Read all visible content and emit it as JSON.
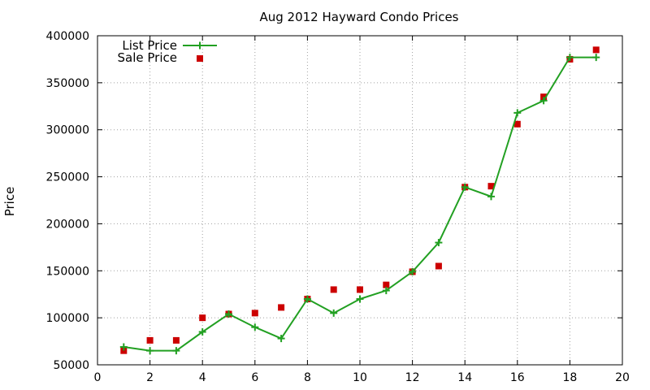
{
  "chart_data": {
    "type": "line",
    "title": "Aug 2012 Hayward Condo Prices",
    "xlabel": "",
    "ylabel": "Price",
    "xlim": [
      0,
      20
    ],
    "ylim": [
      50000,
      400000
    ],
    "x_ticks": [
      0,
      2,
      4,
      6,
      8,
      10,
      12,
      14,
      16,
      18,
      20
    ],
    "y_ticks": [
      50000,
      100000,
      150000,
      200000,
      250000,
      300000,
      350000,
      400000
    ],
    "grid": true,
    "legend_position": "top-left",
    "series": [
      {
        "name": "List Price",
        "style": "lines+points",
        "marker": "plus",
        "color": "#22a022",
        "x": [
          1,
          2,
          3,
          4,
          5,
          6,
          7,
          8,
          9,
          10,
          11,
          12,
          13,
          14,
          15,
          16,
          17,
          18,
          19
        ],
        "values": [
          69000,
          65000,
          65000,
          85000,
          104000,
          90000,
          78000,
          120000,
          105000,
          120000,
          129000,
          149000,
          180000,
          239000,
          229000,
          318000,
          331000,
          377000,
          377000
        ]
      },
      {
        "name": "Sale Price",
        "style": "points",
        "marker": "square",
        "color": "#cc0000",
        "x": [
          1,
          2,
          3,
          4,
          5,
          6,
          7,
          8,
          9,
          10,
          11,
          12,
          13,
          14,
          15,
          16,
          17,
          18,
          19
        ],
        "values": [
          65000,
          76000,
          76000,
          100000,
          104000,
          105000,
          111000,
          120000,
          130000,
          130000,
          135000,
          149000,
          155000,
          239000,
          240000,
          306000,
          335000,
          375000,
          385000
        ]
      }
    ]
  }
}
